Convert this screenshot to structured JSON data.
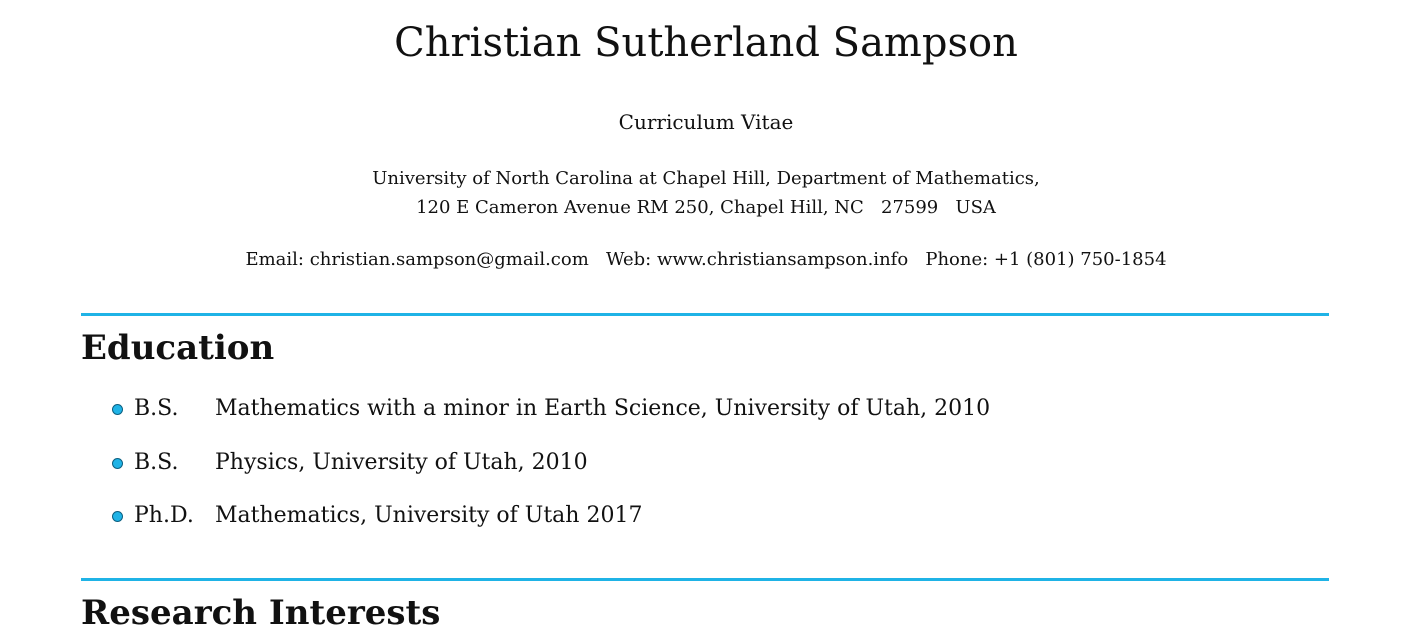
{
  "header": {
    "name": "Christian Sutherland Sampson",
    "subtitle": "Curriculum Vitae",
    "address_line1": "University of North Carolina at Chapel Hill, Department of Mathematics,",
    "address_line2": "120 E Cameron Avenue RM 250, Chapel Hill, NC   27599   USA",
    "email": "Email: christian.sampson@gmail.com",
    "web": "Web: www.christiansampson.info",
    "phone": "Phone: +1 (801) 750-1854"
  },
  "sections": [
    {
      "title": "Education",
      "items": [
        {
          "degree": "B.S.",
          "detail": "Mathematics with a minor in Earth Science, University of Utah, 2010"
        },
        {
          "degree": "B.S.",
          "detail": "Physics, University of Utah, 2010"
        },
        {
          "degree": "Ph.D.",
          "detail": "Mathematics, University of Utah 2017"
        }
      ]
    },
    {
      "title": "Research Interests"
    }
  ],
  "colors": {
    "accent": "#1fb3e6",
    "text": "#111111"
  }
}
